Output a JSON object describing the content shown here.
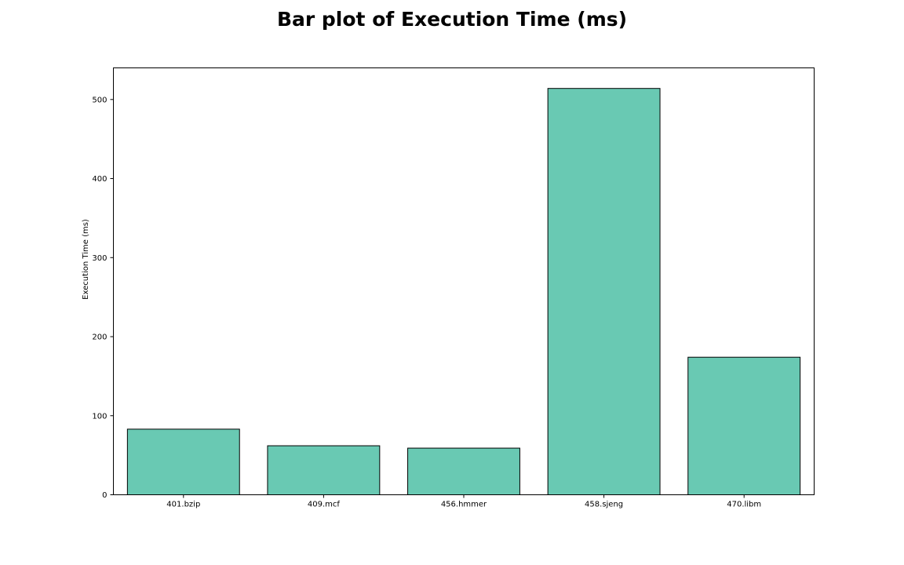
{
  "chart_data": {
    "type": "bar",
    "title": "Bar plot of Execution Time (ms)",
    "xlabel": "",
    "ylabel": "Execution Time (ms)",
    "categories": [
      "401.bzip",
      "409.mcf",
      "456.hmmer",
      "458.sjeng",
      "470.libm"
    ],
    "values": [
      83,
      62,
      59,
      514,
      174
    ],
    "ylim": [
      0,
      540
    ],
    "yticks": [
      0,
      100,
      200,
      300,
      400,
      500
    ],
    "grid": false,
    "legend": "none",
    "bar_color": "#69c9b3",
    "bar_edge_color": "#000000"
  }
}
